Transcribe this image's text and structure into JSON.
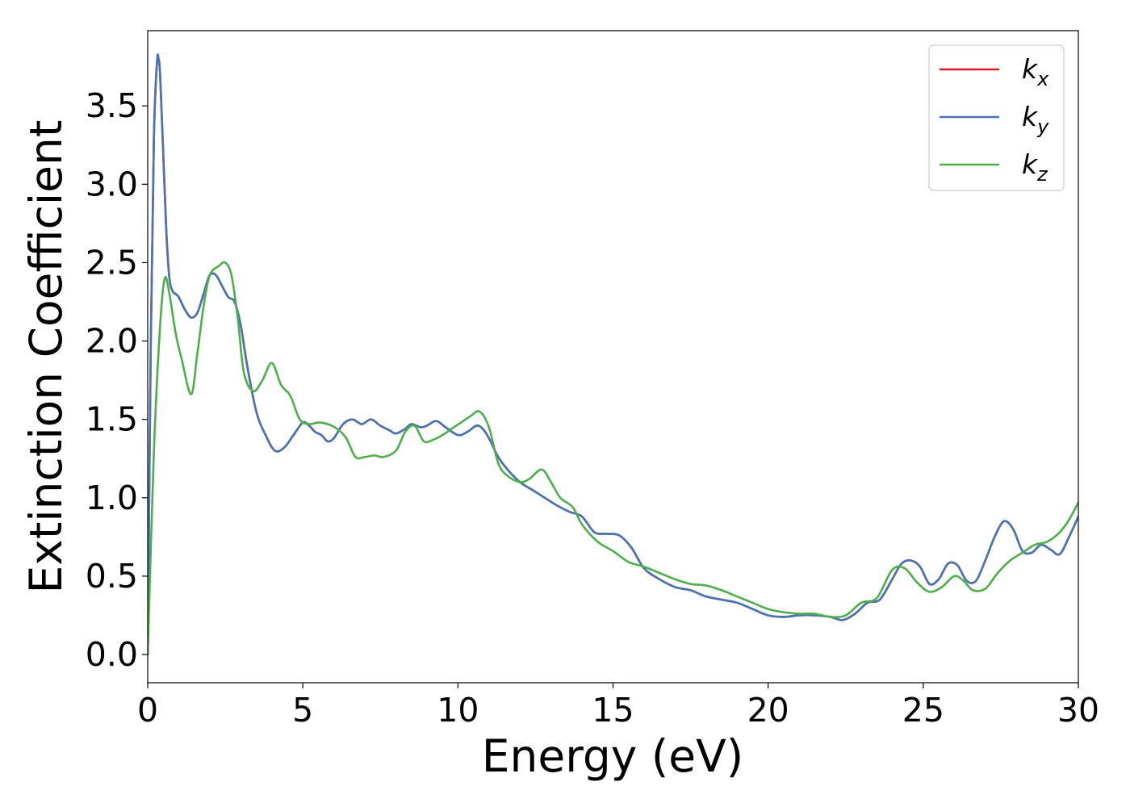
{
  "chart_data": {
    "type": "line",
    "xlabel": "Energy (eV)",
    "ylabel": "Extinction Coefficient",
    "xlim": [
      0,
      30
    ],
    "ylim": [
      -0.18,
      3.98
    ],
    "xticks": [
      0,
      5,
      10,
      15,
      20,
      25,
      30
    ],
    "yticks": [
      0.0,
      0.5,
      1.0,
      1.5,
      2.0,
      2.5,
      3.0,
      3.5
    ],
    "xtick_labels": [
      "0",
      "5",
      "10",
      "15",
      "20",
      "25",
      "30"
    ],
    "ytick_labels": [
      "0.0",
      "0.5",
      "1.0",
      "1.5",
      "2.0",
      "2.5",
      "3.0",
      "3.5"
    ],
    "grid": false,
    "legend_position": "top-right",
    "series": [
      {
        "name": "k",
        "subscript": "x",
        "color": "#e41a1c",
        "x": [
          0,
          0.1,
          0.2,
          0.3,
          0.35,
          0.4,
          0.5,
          0.6,
          0.7,
          0.8,
          0.9,
          1.0,
          1.2,
          1.4,
          1.6,
          1.8,
          2.0,
          2.2,
          2.4,
          2.6,
          2.8,
          3.0,
          3.2,
          3.5,
          3.8,
          4.1,
          4.4,
          4.7,
          5.0,
          5.2,
          5.4,
          5.6,
          5.8,
          6.0,
          6.3,
          6.6,
          6.9,
          7.2,
          7.5,
          7.8,
          8.0,
          8.3,
          8.5,
          8.8,
          9.0,
          9.3,
          9.6,
          10.0,
          10.3,
          10.6,
          10.8,
          11.0,
          11.3,
          11.6,
          12.0,
          12.4,
          12.8,
          13.2,
          13.6,
          14.0,
          14.4,
          14.8,
          15.2,
          15.6,
          16.0,
          16.5,
          17.0,
          17.5,
          18.0,
          18.5,
          19.0,
          19.5,
          20.0,
          20.5,
          21.0,
          21.5,
          22.0,
          22.4,
          22.8,
          23.2,
          23.6,
          24.0,
          24.3,
          24.6,
          24.9,
          25.2,
          25.5,
          25.8,
          26.1,
          26.4,
          26.7,
          27.0,
          27.3,
          27.6,
          27.9,
          28.2,
          28.5,
          28.8,
          29.1,
          29.4,
          29.7,
          30.0
        ],
        "y": [
          0.0,
          2.0,
          3.3,
          3.78,
          3.8,
          3.7,
          3.2,
          2.7,
          2.4,
          2.32,
          2.3,
          2.28,
          2.2,
          2.15,
          2.18,
          2.3,
          2.42,
          2.42,
          2.35,
          2.28,
          2.25,
          2.1,
          1.85,
          1.55,
          1.4,
          1.3,
          1.32,
          1.4,
          1.48,
          1.46,
          1.42,
          1.4,
          1.36,
          1.38,
          1.47,
          1.5,
          1.47,
          1.5,
          1.46,
          1.43,
          1.41,
          1.44,
          1.47,
          1.45,
          1.46,
          1.49,
          1.45,
          1.4,
          1.42,
          1.46,
          1.44,
          1.38,
          1.26,
          1.18,
          1.1,
          1.05,
          1.0,
          0.95,
          0.91,
          0.88,
          0.78,
          0.77,
          0.76,
          0.68,
          0.55,
          0.48,
          0.43,
          0.41,
          0.37,
          0.35,
          0.33,
          0.29,
          0.25,
          0.24,
          0.25,
          0.25,
          0.24,
          0.22,
          0.26,
          0.33,
          0.35,
          0.48,
          0.58,
          0.6,
          0.56,
          0.45,
          0.48,
          0.58,
          0.57,
          0.47,
          0.47,
          0.6,
          0.75,
          0.85,
          0.8,
          0.66,
          0.65,
          0.7,
          0.67,
          0.64,
          0.75,
          0.88
        ]
      },
      {
        "name": "k",
        "subscript": "y",
        "color": "#4575b4",
        "x": [
          0,
          0.1,
          0.2,
          0.3,
          0.35,
          0.4,
          0.5,
          0.6,
          0.7,
          0.8,
          0.9,
          1.0,
          1.2,
          1.4,
          1.6,
          1.8,
          2.0,
          2.2,
          2.4,
          2.6,
          2.8,
          3.0,
          3.2,
          3.5,
          3.8,
          4.1,
          4.4,
          4.7,
          5.0,
          5.2,
          5.4,
          5.6,
          5.8,
          6.0,
          6.3,
          6.6,
          6.9,
          7.2,
          7.5,
          7.8,
          8.0,
          8.3,
          8.5,
          8.8,
          9.0,
          9.3,
          9.6,
          10.0,
          10.3,
          10.6,
          10.8,
          11.0,
          11.3,
          11.6,
          12.0,
          12.4,
          12.8,
          13.2,
          13.6,
          14.0,
          14.4,
          14.8,
          15.2,
          15.6,
          16.0,
          16.5,
          17.0,
          17.5,
          18.0,
          18.5,
          19.0,
          19.5,
          20.0,
          20.5,
          21.0,
          21.5,
          22.0,
          22.4,
          22.8,
          23.2,
          23.6,
          24.0,
          24.3,
          24.6,
          24.9,
          25.2,
          25.5,
          25.8,
          26.1,
          26.4,
          26.7,
          27.0,
          27.3,
          27.6,
          27.9,
          28.2,
          28.5,
          28.8,
          29.1,
          29.4,
          29.7,
          30.0
        ],
        "y": [
          0.0,
          2.0,
          3.3,
          3.78,
          3.8,
          3.7,
          3.2,
          2.7,
          2.4,
          2.32,
          2.3,
          2.28,
          2.2,
          2.15,
          2.18,
          2.3,
          2.42,
          2.42,
          2.35,
          2.28,
          2.25,
          2.1,
          1.85,
          1.55,
          1.4,
          1.3,
          1.32,
          1.4,
          1.48,
          1.46,
          1.42,
          1.4,
          1.36,
          1.38,
          1.47,
          1.5,
          1.47,
          1.5,
          1.46,
          1.43,
          1.41,
          1.44,
          1.47,
          1.45,
          1.46,
          1.49,
          1.45,
          1.4,
          1.42,
          1.46,
          1.44,
          1.38,
          1.26,
          1.18,
          1.1,
          1.05,
          1.0,
          0.95,
          0.91,
          0.88,
          0.78,
          0.77,
          0.76,
          0.68,
          0.55,
          0.48,
          0.43,
          0.41,
          0.37,
          0.35,
          0.33,
          0.29,
          0.25,
          0.24,
          0.25,
          0.25,
          0.24,
          0.22,
          0.26,
          0.33,
          0.35,
          0.48,
          0.58,
          0.6,
          0.56,
          0.45,
          0.48,
          0.58,
          0.57,
          0.47,
          0.47,
          0.6,
          0.75,
          0.85,
          0.8,
          0.66,
          0.65,
          0.7,
          0.67,
          0.64,
          0.75,
          0.88
        ]
      },
      {
        "name": "k",
        "subscript": "z",
        "color": "#4daf4a",
        "x": [
          0,
          0.2,
          0.4,
          0.55,
          0.7,
          0.9,
          1.1,
          1.4,
          1.6,
          1.8,
          2.0,
          2.3,
          2.5,
          2.7,
          2.9,
          3.1,
          3.4,
          3.7,
          4.0,
          4.3,
          4.6,
          4.9,
          5.2,
          5.5,
          5.8,
          6.1,
          6.4,
          6.7,
          7.0,
          7.3,
          7.6,
          8.0,
          8.3,
          8.6,
          8.9,
          9.2,
          9.5,
          9.8,
          10.1,
          10.4,
          10.7,
          11.0,
          11.3,
          11.6,
          12.0,
          12.3,
          12.7,
          13.0,
          13.3,
          13.7,
          14.0,
          14.5,
          15.0,
          15.5,
          16.0,
          16.5,
          17.0,
          17.5,
          18.0,
          18.5,
          19.0,
          19.5,
          20.0,
          20.5,
          21.0,
          21.5,
          22.0,
          22.5,
          23.0,
          23.5,
          24.0,
          24.4,
          24.8,
          25.2,
          25.6,
          26.0,
          26.3,
          26.6,
          27.0,
          27.4,
          27.8,
          28.2,
          28.6,
          29.0,
          29.4,
          29.7,
          30.0
        ],
        "y": [
          0.0,
          1.3,
          2.1,
          2.4,
          2.3,
          2.05,
          1.88,
          1.66,
          1.92,
          2.22,
          2.42,
          2.48,
          2.5,
          2.42,
          2.15,
          1.8,
          1.68,
          1.75,
          1.86,
          1.72,
          1.65,
          1.5,
          1.47,
          1.48,
          1.47,
          1.44,
          1.38,
          1.26,
          1.26,
          1.27,
          1.26,
          1.3,
          1.42,
          1.46,
          1.36,
          1.37,
          1.4,
          1.44,
          1.48,
          1.52,
          1.55,
          1.45,
          1.22,
          1.14,
          1.1,
          1.12,
          1.18,
          1.1,
          1.0,
          0.94,
          0.83,
          0.72,
          0.66,
          0.59,
          0.56,
          0.52,
          0.48,
          0.45,
          0.44,
          0.41,
          0.37,
          0.33,
          0.29,
          0.27,
          0.26,
          0.26,
          0.24,
          0.25,
          0.33,
          0.36,
          0.54,
          0.55,
          0.46,
          0.4,
          0.43,
          0.5,
          0.47,
          0.41,
          0.42,
          0.52,
          0.6,
          0.65,
          0.7,
          0.72,
          0.78,
          0.86,
          0.97
        ]
      }
    ]
  }
}
